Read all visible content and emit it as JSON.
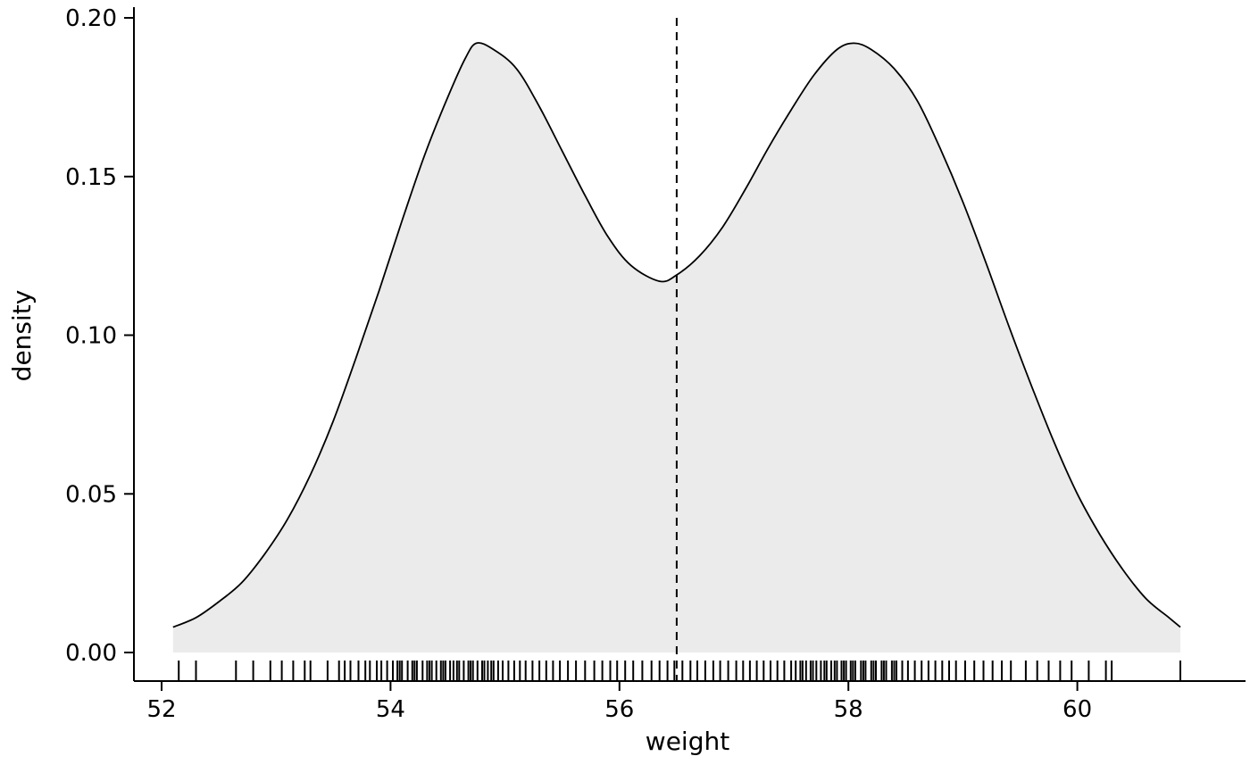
{
  "chart_data": {
    "type": "area",
    "subtype": "density-with-rug",
    "title": "",
    "xlabel": "weight",
    "ylabel": "density",
    "xlim": [
      51.75,
      61.4
    ],
    "ylim": [
      0,
      0.2
    ],
    "x_ticks": [
      52,
      54,
      56,
      58,
      60
    ],
    "x_tick_labels": [
      "52",
      "54",
      "56",
      "58",
      "60"
    ],
    "y_ticks": [
      0.0,
      0.05,
      0.1,
      0.15,
      0.2
    ],
    "y_tick_labels": [
      "0.00",
      "0.05",
      "0.10",
      "0.15",
      "0.20"
    ],
    "grid": false,
    "legend": "none",
    "fill_color": "#ebebeb",
    "line_color": "#000000",
    "vline": {
      "x": 56.5,
      "style": "dashed",
      "color": "#000000"
    },
    "peaks": [
      {
        "x": 54.75,
        "y": 0.192
      },
      {
        "x": 58.05,
        "y": 0.192
      }
    ],
    "valley": {
      "x": 56.35,
      "y": 0.117
    },
    "curve": {
      "x": [
        52.1,
        52.3,
        52.5,
        52.7,
        52.9,
        53.1,
        53.3,
        53.5,
        53.7,
        53.9,
        54.1,
        54.3,
        54.5,
        54.65,
        54.75,
        54.9,
        55.1,
        55.3,
        55.5,
        55.7,
        55.9,
        56.1,
        56.35,
        56.5,
        56.7,
        56.9,
        57.1,
        57.3,
        57.5,
        57.7,
        57.9,
        58.05,
        58.2,
        58.4,
        58.6,
        58.8,
        59.0,
        59.2,
        59.4,
        59.6,
        59.8,
        60.0,
        60.2,
        60.4,
        60.6,
        60.8,
        60.9
      ],
      "y": [
        0.008,
        0.011,
        0.016,
        0.022,
        0.031,
        0.042,
        0.056,
        0.073,
        0.093,
        0.114,
        0.136,
        0.157,
        0.175,
        0.187,
        0.192,
        0.19,
        0.184,
        0.172,
        0.158,
        0.144,
        0.131,
        0.122,
        0.117,
        0.119,
        0.125,
        0.134,
        0.146,
        0.159,
        0.171,
        0.182,
        0.19,
        0.192,
        0.19,
        0.184,
        0.174,
        0.159,
        0.142,
        0.123,
        0.103,
        0.084,
        0.066,
        0.05,
        0.037,
        0.026,
        0.017,
        0.011,
        0.008
      ]
    },
    "rug": [
      52.15,
      52.3,
      52.65,
      52.8,
      52.95,
      53.05,
      53.15,
      53.25,
      53.3,
      53.45,
      53.55,
      53.6,
      53.65,
      53.72,
      53.78,
      53.82,
      53.88,
      53.92,
      53.97,
      54.02,
      54.06,
      54.08,
      54.1,
      54.15,
      54.19,
      54.21,
      54.23,
      54.28,
      54.32,
      54.34,
      54.36,
      54.4,
      54.44,
      54.46,
      54.48,
      54.52,
      54.55,
      54.58,
      54.6,
      54.64,
      54.68,
      54.7,
      54.72,
      54.76,
      54.8,
      54.82,
      54.85,
      54.88,
      54.9,
      54.94,
      54.98,
      55.03,
      55.08,
      55.13,
      55.18,
      55.24,
      55.3,
      55.36,
      55.42,
      55.48,
      55.55,
      55.62,
      55.7,
      55.78,
      55.85,
      55.92,
      55.98,
      56.05,
      56.12,
      56.2,
      56.28,
      56.35,
      56.42,
      56.48,
      56.55,
      56.62,
      56.68,
      56.75,
      56.82,
      56.88,
      56.95,
      57.02,
      57.08,
      57.14,
      57.2,
      57.26,
      57.32,
      57.38,
      57.44,
      57.5,
      57.54,
      57.58,
      57.6,
      57.63,
      57.67,
      57.69,
      57.72,
      57.76,
      57.79,
      57.81,
      57.85,
      57.88,
      57.9,
      57.94,
      57.96,
      57.98,
      58.02,
      58.04,
      58.06,
      58.11,
      58.13,
      58.15,
      58.2,
      58.22,
      58.24,
      58.29,
      58.31,
      58.33,
      58.38,
      58.4,
      58.42,
      58.47,
      58.52,
      58.58,
      58.64,
      58.7,
      58.76,
      58.82,
      58.88,
      58.94,
      59.02,
      59.1,
      59.18,
      59.26,
      59.34,
      59.42,
      59.55,
      59.65,
      59.75,
      59.85,
      59.95,
      60.1,
      60.25,
      60.3,
      60.9
    ]
  }
}
